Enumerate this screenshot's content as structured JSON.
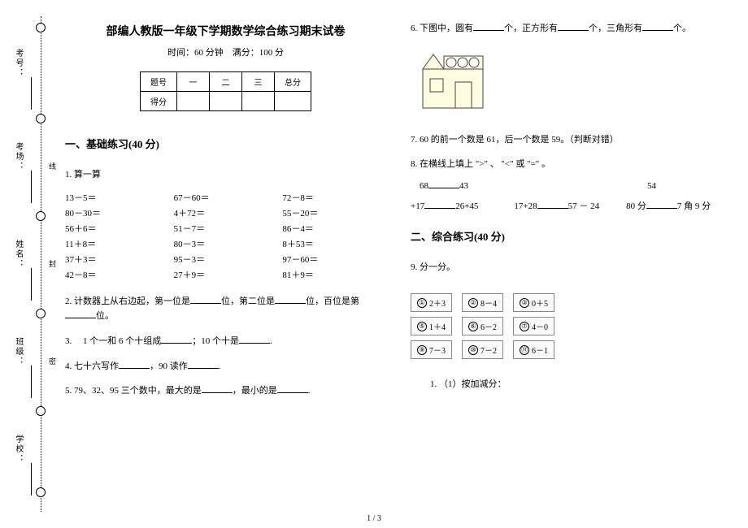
{
  "binding": {
    "labels": [
      "考号：",
      "考场：",
      "姓名：",
      "班级：",
      "学校："
    ],
    "seal": [
      "密",
      "封",
      "线"
    ]
  },
  "header": {
    "title": "部编人教版一年级下学期数学综合练习期末试卷",
    "subtitle": "时间：60 分钟　满分：100 分"
  },
  "score_table": {
    "header": [
      "题号",
      "一",
      "二",
      "三",
      "总分"
    ],
    "row": "得分"
  },
  "section1": {
    "heading": "一、基础练习(40 分)",
    "q1_label": "1. 算一算",
    "calc": [
      "13－5＝",
      "67－60＝",
      "72－8＝",
      "80－30＝",
      "4＋72＝",
      "55－20＝",
      "56＋6＝",
      "51－7＝",
      "86－4＝",
      "11＋8＝",
      "80－3＝",
      "8＋53＝",
      "37＋3＝",
      "95－3＝",
      "97－60＝",
      "42－8＝",
      "27＋9＝",
      "81＋9＝"
    ],
    "q2": "2. 计数器上从右边起，第一位是______位，第二位是______位，百位是第______位。",
    "q3": "3. 　1 个一和 6 个十组成______；10 个十是______.",
    "q4": "4. 七十六写作______，90 读作______.",
    "q5": "5. 79、32、95 三个数中，最大的是______，最小的是______."
  },
  "section1b": {
    "q6": "6. 下图中，圆有______个，正方形有______个，三角形有______个。",
    "q7": "7. 60 的前一个数是 61，后一个数是 59。（判断对错）",
    "q8_label": "8. 在横线上填上 \">\" 、 \"<\" 或 \"=\" 。",
    "q8_rows": [
      "　68______43　　　　　　　　　　　　　　　　　　　　54",
      "+17______26+45　　　　17+28______57 － 24　　　80 分______7 角 9 分"
    ]
  },
  "section2": {
    "heading": "二、综合练习(40 分)",
    "q9_label": "9. 分一分。",
    "cards": [
      [
        {
          "n": "①",
          "t": "2＋3"
        },
        {
          "n": "②",
          "t": "8－4"
        },
        {
          "n": "③",
          "t": "0＋5"
        }
      ],
      [
        {
          "n": "⑤",
          "t": "1＋4"
        },
        {
          "n": "⑥",
          "t": "6－2"
        },
        {
          "n": "⑦",
          "t": "4－0"
        }
      ],
      [
        {
          "n": "⑨",
          "t": "7－3"
        },
        {
          "n": "⑩",
          "t": "7－2"
        },
        {
          "n": "⑪",
          "t": "6－1"
        }
      ]
    ],
    "q9_1": "1. （1）按加减分："
  },
  "page": "1 / 3",
  "house_svg": {
    "bg": "#fffde0",
    "stroke": "#444",
    "circle_fill": "#fff"
  }
}
